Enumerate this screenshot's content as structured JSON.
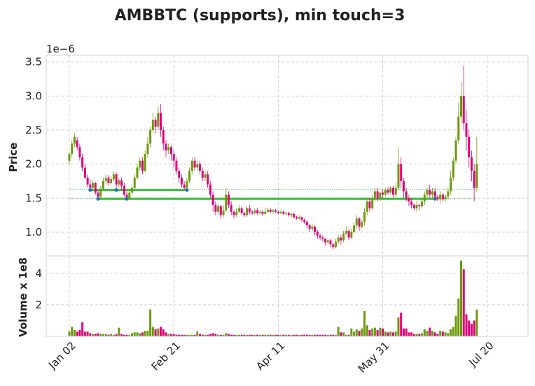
{
  "chart_data": {
    "type": "candlestick",
    "title": "AMBBTC (supports), min touch=3",
    "price_panel": {
      "ylabel": "Price",
      "scale_note": "1e−6",
      "ylim": [
        0.65,
        3.6
      ],
      "yticks": [
        1.0,
        1.5,
        2.0,
        2.5,
        3.0,
        3.5
      ],
      "ytick_labels": [
        "1.0",
        "1.5",
        "2.0",
        "2.5",
        "3.0",
        "3.5"
      ],
      "support_levels": [
        {
          "level": 1.62,
          "segment_from_day": 8,
          "segment_to_day": 45,
          "touch_days": [
            8,
            18,
            45
          ]
        },
        {
          "level": 1.49,
          "segment_from_day": 11,
          "segment_to_day": 140,
          "touch_days": [
            11,
            22,
            140
          ]
        }
      ]
    },
    "volume_panel": {
      "ylabel": "Volume x 1e8",
      "ylim": [
        0,
        5.1
      ],
      "yticks": [
        2,
        4
      ],
      "ytick_labels": [
        "2",
        "4"
      ]
    },
    "x_axis": {
      "ticks": [
        {
          "day": 0,
          "label": "Jan 02"
        },
        {
          "day": 40,
          "label": "Feb 21"
        },
        {
          "day": 80,
          "label": "Apr 11"
        },
        {
          "day": 120,
          "label": "May 31"
        },
        {
          "day": 160,
          "label": "Jul 20"
        }
      ]
    },
    "colors": {
      "up": "#6b9a0b",
      "down": "#e00078",
      "support": "#2fc42f",
      "marker": "#1f77b4"
    },
    "candles": [
      [
        2.05,
        2.15,
        2.0,
        2.18,
        0.3
      ],
      [
        2.15,
        2.3,
        2.1,
        2.35,
        0.6
      ],
      [
        2.3,
        2.4,
        2.25,
        2.45,
        0.4
      ],
      [
        2.35,
        2.25,
        2.2,
        2.4,
        0.3
      ],
      [
        2.25,
        2.1,
        2.05,
        2.3,
        0.4
      ],
      [
        2.1,
        1.95,
        1.9,
        2.15,
        0.9
      ],
      [
        1.95,
        1.8,
        1.78,
        2.0,
        0.3
      ],
      [
        1.8,
        1.7,
        1.65,
        1.85,
        0.3
      ],
      [
        1.7,
        1.65,
        1.62,
        1.78,
        0.2
      ],
      [
        1.65,
        1.72,
        1.63,
        1.76,
        0.15
      ],
      [
        1.72,
        1.58,
        1.55,
        1.74,
        0.15
      ],
      [
        1.58,
        1.52,
        1.49,
        1.62,
        0.2
      ],
      [
        1.52,
        1.64,
        1.5,
        1.68,
        0.15
      ],
      [
        1.64,
        1.75,
        1.62,
        1.8,
        0.15
      ],
      [
        1.75,
        1.8,
        1.7,
        1.85,
        0.15
      ],
      [
        1.8,
        1.72,
        1.68,
        1.84,
        0.1
      ],
      [
        1.72,
        1.78,
        1.7,
        1.82,
        0.15
      ],
      [
        1.78,
        1.85,
        1.75,
        1.9,
        0.1
      ],
      [
        1.85,
        1.7,
        1.62,
        1.88,
        0.15
      ],
      [
        1.7,
        1.76,
        1.65,
        1.8,
        0.55
      ],
      [
        1.76,
        1.68,
        1.62,
        1.8,
        0.15
      ],
      [
        1.68,
        1.55,
        1.52,
        1.72,
        0.1
      ],
      [
        1.55,
        1.5,
        1.49,
        1.6,
        0.1
      ],
      [
        1.5,
        1.58,
        1.48,
        1.62,
        0.1
      ],
      [
        1.58,
        1.65,
        1.55,
        1.7,
        0.2
      ],
      [
        1.65,
        1.8,
        1.62,
        1.85,
        0.25
      ],
      [
        1.8,
        1.95,
        1.78,
        2.0,
        0.25
      ],
      [
        1.95,
        2.05,
        1.9,
        2.1,
        0.2
      ],
      [
        2.05,
        1.9,
        1.85,
        2.1,
        0.25
      ],
      [
        1.9,
        2.15,
        1.88,
        2.2,
        0.35
      ],
      [
        2.15,
        2.3,
        2.1,
        2.4,
        0.35
      ],
      [
        2.3,
        2.5,
        2.25,
        2.55,
        1.7
      ],
      [
        2.5,
        2.65,
        2.45,
        2.75,
        0.6
      ],
      [
        2.65,
        2.55,
        2.45,
        2.7,
        0.45
      ],
      [
        2.55,
        2.75,
        2.5,
        2.85,
        0.5
      ],
      [
        2.75,
        2.5,
        2.4,
        2.88,
        0.6
      ],
      [
        2.5,
        2.3,
        2.2,
        2.55,
        0.45
      ],
      [
        2.3,
        2.2,
        2.1,
        2.35,
        0.25
      ],
      [
        2.2,
        2.25,
        2.15,
        2.3,
        0.15
      ],
      [
        2.25,
        2.15,
        2.05,
        2.28,
        0.15
      ],
      [
        2.15,
        2.05,
        1.95,
        2.2,
        0.15
      ],
      [
        2.05,
        1.9,
        1.85,
        2.1,
        0.1
      ],
      [
        1.9,
        1.8,
        1.72,
        1.95,
        0.1
      ],
      [
        1.8,
        1.7,
        1.65,
        1.85,
        0.1
      ],
      [
        1.7,
        1.65,
        1.62,
        1.75,
        0.1
      ],
      [
        1.65,
        1.75,
        1.63,
        1.8,
        0.1
      ],
      [
        1.75,
        1.9,
        1.72,
        1.95,
        0.1
      ],
      [
        1.9,
        2.05,
        1.85,
        2.1,
        0.1
      ],
      [
        2.05,
        1.95,
        1.9,
        2.1,
        0.1
      ],
      [
        1.95,
        2.0,
        1.9,
        2.05,
        0.3
      ],
      [
        2.0,
        1.9,
        1.85,
        2.05,
        0.15
      ],
      [
        1.9,
        1.8,
        1.75,
        1.95,
        0.1
      ],
      [
        1.8,
        1.85,
        1.75,
        1.9,
        0.1
      ],
      [
        1.85,
        1.7,
        1.65,
        1.9,
        0.1
      ],
      [
        1.7,
        1.55,
        1.5,
        1.75,
        0.15
      ],
      [
        1.55,
        1.4,
        1.3,
        1.6,
        0.2
      ],
      [
        1.4,
        1.3,
        1.25,
        1.45,
        0.15
      ],
      [
        1.3,
        1.38,
        1.25,
        1.42,
        0.1
      ],
      [
        1.38,
        1.25,
        1.2,
        1.4,
        0.1
      ],
      [
        1.25,
        1.32,
        1.22,
        1.4,
        0.1
      ],
      [
        1.32,
        1.55,
        1.3,
        1.65,
        0.2
      ],
      [
        1.55,
        1.4,
        1.35,
        1.6,
        0.15
      ],
      [
        1.4,
        1.3,
        1.25,
        1.45,
        0.1
      ],
      [
        1.3,
        1.25,
        1.2,
        1.32,
        0.1
      ],
      [
        1.25,
        1.3,
        1.22,
        1.35,
        0.1
      ],
      [
        1.3,
        1.35,
        1.28,
        1.4,
        0.1
      ],
      [
        1.35,
        1.28,
        1.25,
        1.38,
        0.1
      ],
      [
        1.28,
        1.25,
        1.22,
        1.3,
        0.1
      ],
      [
        1.25,
        1.35,
        1.22,
        1.38,
        0.1
      ],
      [
        1.35,
        1.3,
        1.26,
        1.4,
        0.1
      ],
      [
        1.3,
        1.28,
        1.25,
        1.33,
        0.1
      ],
      [
        1.28,
        1.32,
        1.25,
        1.35,
        0.1
      ],
      [
        1.32,
        1.28,
        1.25,
        1.36,
        0.1
      ],
      [
        1.28,
        1.3,
        1.25,
        1.33,
        0.1
      ],
      [
        1.3,
        1.27,
        1.24,
        1.32,
        0.1
      ],
      [
        1.27,
        1.3,
        1.25,
        1.35,
        0.1
      ],
      [
        1.3,
        1.33,
        1.28,
        1.36,
        0.1
      ],
      [
        1.33,
        1.3,
        1.28,
        1.35,
        0.1
      ],
      [
        1.3,
        1.32,
        1.27,
        1.34,
        0.1
      ],
      [
        1.32,
        1.3,
        1.28,
        1.34,
        0.1
      ],
      [
        1.3,
        1.28,
        1.26,
        1.32,
        0.1
      ],
      [
        1.28,
        1.3,
        1.26,
        1.32,
        0.1
      ],
      [
        1.3,
        1.27,
        1.25,
        1.31,
        0.1
      ],
      [
        1.27,
        1.28,
        1.25,
        1.3,
        0.1
      ],
      [
        1.28,
        1.25,
        1.23,
        1.3,
        0.1
      ],
      [
        1.25,
        1.27,
        1.22,
        1.28,
        0.1
      ],
      [
        1.27,
        1.22,
        1.2,
        1.28,
        0.1
      ],
      [
        1.22,
        1.2,
        1.18,
        1.24,
        0.1
      ],
      [
        1.2,
        1.22,
        1.18,
        1.25,
        0.1
      ],
      [
        1.22,
        1.18,
        1.15,
        1.23,
        0.1
      ],
      [
        1.18,
        1.15,
        1.12,
        1.2,
        0.1
      ],
      [
        1.15,
        1.1,
        1.05,
        1.18,
        0.1
      ],
      [
        1.1,
        1.05,
        1.0,
        1.12,
        0.1
      ],
      [
        1.05,
        1.08,
        1.02,
        1.12,
        0.1
      ],
      [
        1.08,
        1.0,
        0.95,
        1.1,
        0.1
      ],
      [
        1.0,
        0.95,
        0.9,
        1.03,
        0.1
      ],
      [
        0.95,
        0.92,
        0.88,
        0.98,
        0.1
      ],
      [
        0.92,
        0.9,
        0.86,
        0.95,
        0.1
      ],
      [
        0.9,
        0.85,
        0.8,
        0.92,
        0.1
      ],
      [
        0.85,
        0.88,
        0.82,
        0.9,
        0.1
      ],
      [
        0.88,
        0.82,
        0.78,
        0.9,
        0.1
      ],
      [
        0.82,
        0.78,
        0.75,
        0.85,
        0.1
      ],
      [
        0.78,
        0.86,
        0.76,
        0.9,
        0.1
      ],
      [
        0.86,
        0.92,
        0.83,
        0.95,
        0.6
      ],
      [
        0.92,
        0.88,
        0.82,
        0.96,
        0.25
      ],
      [
        0.88,
        0.98,
        0.85,
        1.02,
        0.25
      ],
      [
        0.98,
        1.02,
        0.95,
        1.08,
        0.1
      ],
      [
        1.02,
        0.92,
        0.88,
        1.05,
        0.1
      ],
      [
        0.92,
        1.0,
        0.9,
        1.05,
        0.5
      ],
      [
        1.0,
        1.1,
        0.98,
        1.15,
        0.3
      ],
      [
        1.1,
        1.2,
        1.05,
        1.25,
        0.45
      ],
      [
        1.2,
        1.08,
        1.02,
        1.22,
        0.35
      ],
      [
        1.08,
        1.15,
        1.05,
        1.18,
        0.5
      ],
      [
        1.15,
        1.3,
        1.1,
        1.35,
        1.6
      ],
      [
        1.3,
        1.45,
        1.25,
        1.5,
        0.7
      ],
      [
        1.45,
        1.35,
        1.3,
        1.5,
        0.4
      ],
      [
        1.35,
        1.5,
        1.32,
        1.55,
        0.5
      ],
      [
        1.5,
        1.6,
        1.45,
        1.65,
        0.55
      ],
      [
        1.6,
        1.5,
        1.45,
        1.65,
        0.4
      ],
      [
        1.5,
        1.58,
        1.45,
        1.6,
        0.55
      ],
      [
        1.58,
        1.55,
        1.5,
        1.62,
        0.5
      ],
      [
        1.55,
        1.62,
        1.52,
        1.65,
        0.3
      ],
      [
        1.62,
        1.58,
        1.55,
        1.67,
        0.25
      ],
      [
        1.58,
        1.65,
        1.55,
        1.68,
        0.3
      ],
      [
        1.65,
        1.55,
        1.5,
        1.68,
        0.25
      ],
      [
        1.55,
        1.65,
        1.52,
        1.72,
        0.3
      ],
      [
        1.65,
        2.0,
        1.62,
        2.25,
        1.2
      ],
      [
        2.0,
        1.75,
        1.65,
        2.1,
        1.5
      ],
      [
        1.75,
        1.6,
        1.5,
        1.8,
        0.5
      ],
      [
        1.6,
        1.5,
        1.45,
        1.65,
        0.5
      ],
      [
        1.5,
        1.45,
        1.38,
        1.55,
        0.25
      ],
      [
        1.45,
        1.4,
        1.35,
        1.5,
        0.25
      ],
      [
        1.4,
        1.35,
        1.32,
        1.42,
        0.15
      ],
      [
        1.35,
        1.4,
        1.3,
        1.45,
        0.15
      ],
      [
        1.4,
        1.38,
        1.32,
        1.42,
        0.15
      ],
      [
        1.38,
        1.45,
        1.35,
        1.5,
        0.2
      ],
      [
        1.45,
        1.55,
        1.4,
        1.6,
        0.45
      ],
      [
        1.55,
        1.62,
        1.5,
        1.65,
        0.35
      ],
      [
        1.62,
        1.55,
        1.5,
        1.7,
        0.55
      ],
      [
        1.55,
        1.6,
        1.5,
        1.65,
        0.35
      ],
      [
        1.6,
        1.52,
        1.48,
        1.65,
        0.25
      ],
      [
        1.52,
        1.48,
        1.45,
        1.55,
        0.15
      ],
      [
        1.48,
        1.55,
        1.42,
        1.6,
        0.35
      ],
      [
        1.55,
        1.48,
        1.45,
        1.58,
        0.3
      ],
      [
        1.48,
        1.52,
        1.45,
        1.55,
        0.25
      ],
      [
        1.52,
        1.6,
        1.48,
        1.65,
        0.2
      ],
      [
        1.6,
        1.8,
        1.55,
        1.9,
        0.45
      ],
      [
        1.8,
        2.05,
        1.75,
        2.1,
        0.6
      ],
      [
        2.05,
        2.35,
        2.0,
        2.4,
        1.3
      ],
      [
        2.35,
        2.7,
        2.3,
        2.9,
        2.4
      ],
      [
        2.7,
        3.0,
        2.6,
        3.2,
        4.8
      ],
      [
        3.0,
        2.6,
        2.5,
        3.45,
        4.25
      ],
      [
        2.6,
        2.4,
        2.2,
        2.8,
        1.4
      ],
      [
        2.4,
        2.1,
        1.95,
        2.5,
        1.0
      ],
      [
        2.1,
        1.9,
        1.75,
        2.2,
        0.8
      ],
      [
        1.9,
        1.65,
        1.45,
        2.0,
        1.0
      ],
      [
        1.65,
        2.0,
        1.6,
        2.4,
        1.7
      ]
    ]
  }
}
